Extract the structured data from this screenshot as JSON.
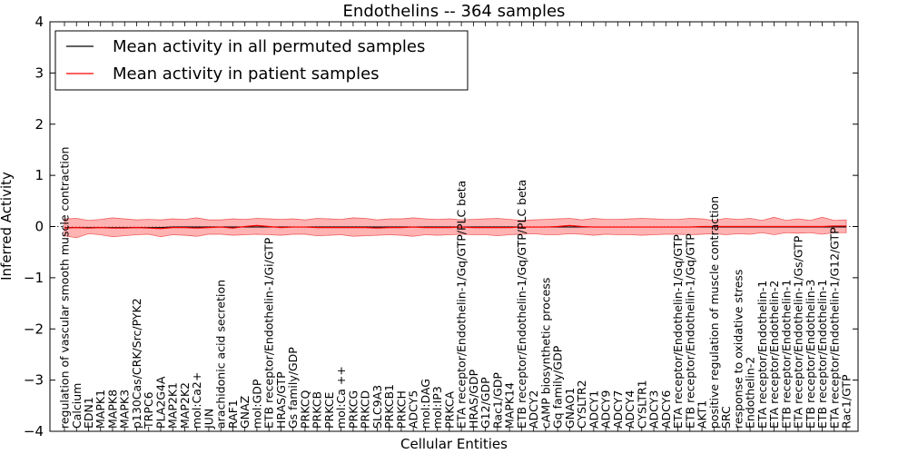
{
  "chart_data": {
    "type": "line",
    "title": "Endothelins -- 364 samples",
    "xlabel": "Cellular Entities",
    "ylabel": "Inferred Activity",
    "ylim": [
      -4,
      4
    ],
    "yticks": [
      "−4",
      "−3",
      "−2",
      "−1",
      "0",
      "1",
      "2",
      "3",
      "4"
    ],
    "legend": {
      "position": "top-left",
      "entries": [
        {
          "label": "Mean activity in all permuted samples",
          "color": "#000000"
        },
        {
          "label": "Mean activity in patient samples",
          "color": "#ff0000"
        }
      ]
    },
    "band_color": "#ff9999",
    "categories": [
      "regulation of vascular smooth muscle contraction",
      "Calcium",
      "EDN1",
      "MAPK1",
      "MAPK8",
      "MAPK3",
      "p130Cas/CRK/Src/PYK2",
      "TRPC6",
      "PLA2G4A",
      "MAP2K1",
      "MAP2K2",
      "mol:Ca2+",
      "JUN",
      "arachidonic acid secretion",
      "RAF1",
      "GNAZ",
      "mol:GDP",
      "ETB receptor/Endothelin-1/Gi/GTP",
      "HRAS/GTP",
      "Gs family/GDP",
      "PRKCQ",
      "PRKCB",
      "PRKCE",
      "mol:Ca ++",
      "PRKCG",
      "PRKCD",
      "SLC9A3",
      "PRKCB1",
      "PRKCH",
      "ADCY5",
      "mol:DAG",
      "mol:IP3",
      "PRKCA",
      "ETA receptor/Endothelin-1/Gq/GTP/PLC beta",
      "HRAS/GDP",
      "G12/GDP",
      "Rac1/GDP",
      "MAPK14",
      "ETB receptor/Endothelin-1/Gq/GTP/PLC beta",
      "ADCY2",
      "cAMP biosynthetic process",
      "Gq family/GDP",
      "GNAO1",
      "CYSLTR2",
      "ADCY1",
      "ADCY9",
      "ADCY7",
      "ADCY4",
      "CYSLTR1",
      "ADCY3",
      "ADCY6",
      "ETA receptor/Endothelin-1/Gq/GTP",
      "ETB receptor/Endothelin-1/Gq/GTP",
      "AKT1",
      "positive regulation of muscle contraction",
      "SRC",
      "response to oxidative stress",
      "Endothelin-2",
      "ETA receptor/Endothelin-1",
      "ETA receptor/Endothelin-2",
      "ETB receptor/Endothelin-1",
      "ETA receptor/Endothelin-1/Gs/GTP",
      "ETB receptor/Endothelin-3",
      "ETB receptor/Endothelin-1",
      "ETA receptor/Endothelin-1/G12/GTP",
      "Rac1/GTP"
    ],
    "series": [
      {
        "name": "Mean activity in all permuted samples",
        "color": "#000000",
        "values": [
          -0.02,
          -0.02,
          -0.02,
          -0.02,
          -0.02,
          -0.02,
          -0.02,
          -0.02,
          -0.02,
          -0.01,
          -0.01,
          -0.01,
          -0.01,
          -0.01,
          -0.01,
          -0.01,
          -0.01,
          -0.01,
          -0.01,
          -0.01,
          -0.01,
          -0.01,
          -0.01,
          -0.01,
          -0.01,
          -0.01,
          -0.01,
          -0.01,
          -0.01,
          -0.01,
          -0.01,
          -0.01,
          -0.01,
          -0.01,
          -0.01,
          -0.01,
          -0.01,
          -0.01,
          -0.01,
          -0.01,
          -0.01,
          -0.01,
          -0.01,
          -0.01,
          -0.01,
          -0.01,
          -0.01,
          -0.01,
          -0.01,
          -0.01,
          -0.01,
          -0.01,
          -0.01,
          -0.01,
          -0.01,
          -0.01,
          -0.01,
          -0.01,
          -0.01,
          -0.01,
          -0.01,
          -0.01,
          -0.01,
          -0.01,
          -0.01,
          -0.01
        ]
      },
      {
        "name": "Mean activity in patient samples",
        "color": "#ff0000",
        "values": [
          -0.03,
          -0.02,
          -0.03,
          -0.02,
          -0.03,
          -0.03,
          -0.02,
          -0.03,
          -0.04,
          -0.02,
          -0.02,
          -0.03,
          -0.02,
          -0.01,
          -0.03,
          0.0,
          0.02,
          0.0,
          -0.02,
          -0.01,
          -0.01,
          -0.02,
          -0.02,
          -0.02,
          -0.02,
          -0.02,
          -0.03,
          -0.02,
          -0.02,
          -0.01,
          -0.02,
          -0.02,
          -0.02,
          -0.01,
          -0.02,
          -0.02,
          -0.02,
          -0.02,
          -0.01,
          -0.01,
          -0.01,
          0.0,
          0.02,
          0.0,
          -0.01,
          -0.01,
          -0.01,
          -0.01,
          -0.01,
          -0.01,
          -0.01,
          -0.01,
          -0.01,
          0.0,
          0.0,
          0.0,
          0.0,
          0.0,
          0.0,
          0.0,
          0.0,
          0.0,
          0.0,
          0.0,
          0.01,
          0.01
        ]
      }
    ],
    "band": {
      "upper": [
        0.15,
        0.16,
        0.12,
        0.14,
        0.17,
        0.15,
        0.13,
        0.14,
        0.13,
        0.15,
        0.14,
        0.17,
        0.13,
        0.13,
        0.15,
        0.14,
        0.16,
        0.15,
        0.14,
        0.15,
        0.13,
        0.16,
        0.15,
        0.14,
        0.17,
        0.16,
        0.13,
        0.15,
        0.15,
        0.17,
        0.15,
        0.14,
        0.15,
        0.13,
        0.14,
        0.15,
        0.16,
        0.14,
        0.12,
        0.13,
        0.14,
        0.15,
        0.16,
        0.13,
        0.16,
        0.14,
        0.14,
        0.15,
        0.16,
        0.15,
        0.14,
        0.14,
        0.16,
        0.15,
        0.12,
        0.16,
        0.14,
        0.16,
        0.12,
        0.18,
        0.12,
        0.15,
        0.12,
        0.18,
        0.12,
        0.13
      ],
      "lower": [
        -0.18,
        -0.22,
        -0.14,
        -0.16,
        -0.2,
        -0.18,
        -0.16,
        -0.15,
        -0.2,
        -0.16,
        -0.17,
        -0.19,
        -0.15,
        -0.15,
        -0.17,
        -0.16,
        -0.15,
        -0.16,
        -0.17,
        -0.15,
        -0.15,
        -0.18,
        -0.17,
        -0.16,
        -0.19,
        -0.18,
        -0.17,
        -0.16,
        -0.17,
        -0.19,
        -0.16,
        -0.17,
        -0.16,
        -0.15,
        -0.16,
        -0.16,
        -0.18,
        -0.16,
        -0.15,
        -0.14,
        -0.16,
        -0.16,
        -0.14,
        -0.15,
        -0.17,
        -0.15,
        -0.16,
        -0.16,
        -0.17,
        -0.16,
        -0.15,
        -0.15,
        -0.16,
        -0.15,
        -0.14,
        -0.16,
        -0.14,
        -0.15,
        -0.12,
        -0.16,
        -0.12,
        -0.13,
        -0.12,
        -0.15,
        -0.12,
        -0.12
      ]
    }
  }
}
